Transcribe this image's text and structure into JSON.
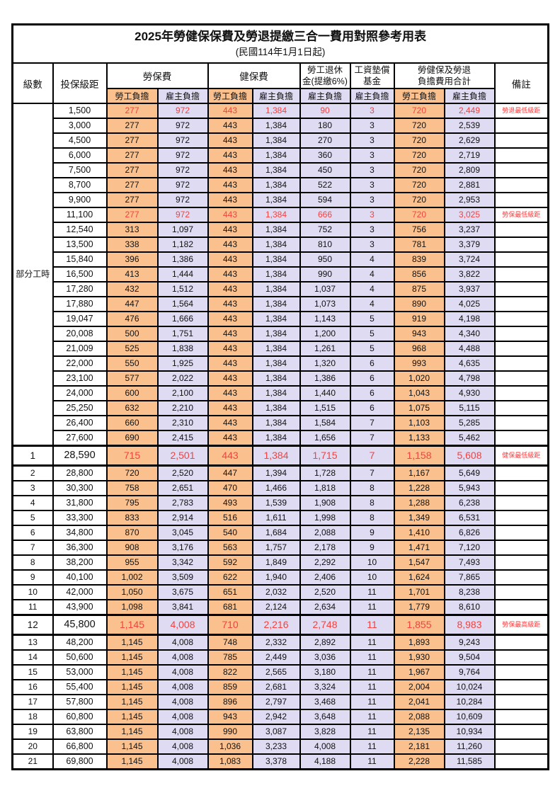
{
  "title": "2025年勞健保保費及勞退提繳三合一費用對照參考用表",
  "subtitle": "(民國114年1月1日起)",
  "colors": {
    "employee_col_bg": "#FAC18E",
    "employer_col_bg": "#DFDBF2",
    "highlight_text": "#F4423E",
    "remark_text": "#FB3B3B",
    "border": "#000000"
  },
  "header": {
    "level_label": "級數",
    "bracket_label": "投保級距",
    "groups": [
      {
        "label": "勞保費",
        "subs": [
          "勞工負擔",
          "雇主負擔"
        ]
      },
      {
        "label": "健保費",
        "subs": [
          "勞工負擔",
          "雇主負擔"
        ]
      },
      {
        "lines": [
          "勞工退休",
          "金(提繳6%)"
        ],
        "subs": [
          "雇主負擔"
        ]
      },
      {
        "lines": [
          "工資墊償",
          "基金"
        ],
        "subs": [
          "雇主負擔"
        ]
      },
      {
        "lines": [
          "勞健保及勞退",
          "負擔費用合計"
        ],
        "subs": [
          "勞工負擔",
          "雇主負擔"
        ]
      }
    ],
    "remark_label": "備註"
  },
  "part_time_label": "部分工時",
  "part_time_rowspan": 23,
  "table": {
    "rows": [
      {
        "level": null,
        "bracket": "1,500",
        "values": [
          "277",
          "972",
          "443",
          "1,384",
          "90",
          "3",
          "720",
          "2,449"
        ],
        "remark": "勞退最低級距",
        "red": true,
        "big": false
      },
      {
        "level": null,
        "bracket": "3,000",
        "values": [
          "277",
          "972",
          "443",
          "1,384",
          "180",
          "3",
          "720",
          "2,539"
        ],
        "remark": "",
        "red": false,
        "big": false
      },
      {
        "level": null,
        "bracket": "4,500",
        "values": [
          "277",
          "972",
          "443",
          "1,384",
          "270",
          "3",
          "720",
          "2,629"
        ],
        "remark": "",
        "red": false,
        "big": false
      },
      {
        "level": null,
        "bracket": "6,000",
        "values": [
          "277",
          "972",
          "443",
          "1,384",
          "360",
          "3",
          "720",
          "2,719"
        ],
        "remark": "",
        "red": false,
        "big": false
      },
      {
        "level": null,
        "bracket": "7,500",
        "values": [
          "277",
          "972",
          "443",
          "1,384",
          "450",
          "3",
          "720",
          "2,809"
        ],
        "remark": "",
        "red": false,
        "big": false
      },
      {
        "level": null,
        "bracket": "8,700",
        "values": [
          "277",
          "972",
          "443",
          "1,384",
          "522",
          "3",
          "720",
          "2,881"
        ],
        "remark": "",
        "red": false,
        "big": false
      },
      {
        "level": null,
        "bracket": "9,900",
        "values": [
          "277",
          "972",
          "443",
          "1,384",
          "594",
          "3",
          "720",
          "2,953"
        ],
        "remark": "",
        "red": false,
        "big": false
      },
      {
        "level": null,
        "bracket": "11,100",
        "values": [
          "277",
          "972",
          "443",
          "1,384",
          "666",
          "3",
          "720",
          "3,025"
        ],
        "remark": "勞保最低級距",
        "red": true,
        "big": false
      },
      {
        "level": null,
        "bracket": "12,540",
        "values": [
          "313",
          "1,097",
          "443",
          "1,384",
          "752",
          "3",
          "756",
          "3,237"
        ],
        "remark": "",
        "red": false,
        "big": false
      },
      {
        "level": null,
        "bracket": "13,500",
        "values": [
          "338",
          "1,182",
          "443",
          "1,384",
          "810",
          "3",
          "781",
          "3,379"
        ],
        "remark": "",
        "red": false,
        "big": false
      },
      {
        "level": null,
        "bracket": "15,840",
        "values": [
          "396",
          "1,386",
          "443",
          "1,384",
          "950",
          "4",
          "839",
          "3,724"
        ],
        "remark": "",
        "red": false,
        "big": false
      },
      {
        "level": null,
        "bracket": "16,500",
        "values": [
          "413",
          "1,444",
          "443",
          "1,384",
          "990",
          "4",
          "856",
          "3,822"
        ],
        "remark": "",
        "red": false,
        "big": false
      },
      {
        "level": null,
        "bracket": "17,280",
        "values": [
          "432",
          "1,512",
          "443",
          "1,384",
          "1,037",
          "4",
          "875",
          "3,937"
        ],
        "remark": "",
        "red": false,
        "big": false
      },
      {
        "level": null,
        "bracket": "17,880",
        "values": [
          "447",
          "1,564",
          "443",
          "1,384",
          "1,073",
          "4",
          "890",
          "4,025"
        ],
        "remark": "",
        "red": false,
        "big": false
      },
      {
        "level": null,
        "bracket": "19,047",
        "values": [
          "476",
          "1,666",
          "443",
          "1,384",
          "1,143",
          "5",
          "919",
          "4,198"
        ],
        "remark": "",
        "red": false,
        "big": false
      },
      {
        "level": null,
        "bracket": "20,008",
        "values": [
          "500",
          "1,751",
          "443",
          "1,384",
          "1,200",
          "5",
          "943",
          "4,340"
        ],
        "remark": "",
        "red": false,
        "big": false
      },
      {
        "level": null,
        "bracket": "21,009",
        "values": [
          "525",
          "1,838",
          "443",
          "1,384",
          "1,261",
          "5",
          "968",
          "4,488"
        ],
        "remark": "",
        "red": false,
        "big": false
      },
      {
        "level": null,
        "bracket": "22,000",
        "values": [
          "550",
          "1,925",
          "443",
          "1,384",
          "1,320",
          "6",
          "993",
          "4,635"
        ],
        "remark": "",
        "red": false,
        "big": false
      },
      {
        "level": null,
        "bracket": "23,100",
        "values": [
          "577",
          "2,022",
          "443",
          "1,384",
          "1,386",
          "6",
          "1,020",
          "4,798"
        ],
        "remark": "",
        "red": false,
        "big": false
      },
      {
        "level": null,
        "bracket": "24,000",
        "values": [
          "600",
          "2,100",
          "443",
          "1,384",
          "1,440",
          "6",
          "1,043",
          "4,930"
        ],
        "remark": "",
        "red": false,
        "big": false
      },
      {
        "level": null,
        "bracket": "25,250",
        "values": [
          "632",
          "2,210",
          "443",
          "1,384",
          "1,515",
          "6",
          "1,075",
          "5,115"
        ],
        "remark": "",
        "red": false,
        "big": false
      },
      {
        "level": null,
        "bracket": "26,400",
        "values": [
          "660",
          "2,310",
          "443",
          "1,384",
          "1,584",
          "7",
          "1,103",
          "5,285"
        ],
        "remark": "",
        "red": false,
        "big": false
      },
      {
        "level": null,
        "bracket": "27,600",
        "values": [
          "690",
          "2,415",
          "443",
          "1,384",
          "1,656",
          "7",
          "1,133",
          "5,462"
        ],
        "remark": "",
        "red": false,
        "big": false
      },
      {
        "level": "1",
        "bracket": "28,590",
        "values": [
          "715",
          "2,501",
          "443",
          "1,384",
          "1,715",
          "7",
          "1,158",
          "5,608"
        ],
        "remark": "健保最低級距",
        "red": true,
        "big": true
      },
      {
        "level": "2",
        "bracket": "28,800",
        "values": [
          "720",
          "2,520",
          "447",
          "1,394",
          "1,728",
          "7",
          "1,167",
          "5,649"
        ],
        "remark": "",
        "red": false,
        "big": false
      },
      {
        "level": "3",
        "bracket": "30,300",
        "values": [
          "758",
          "2,651",
          "470",
          "1,466",
          "1,818",
          "8",
          "1,228",
          "5,943"
        ],
        "remark": "",
        "red": false,
        "big": false
      },
      {
        "level": "4",
        "bracket": "31,800",
        "values": [
          "795",
          "2,783",
          "493",
          "1,539",
          "1,908",
          "8",
          "1,288",
          "6,238"
        ],
        "remark": "",
        "red": false,
        "big": false
      },
      {
        "level": "5",
        "bracket": "33,300",
        "values": [
          "833",
          "2,914",
          "516",
          "1,611",
          "1,998",
          "8",
          "1,349",
          "6,531"
        ],
        "remark": "",
        "red": false,
        "big": false
      },
      {
        "level": "6",
        "bracket": "34,800",
        "values": [
          "870",
          "3,045",
          "540",
          "1,684",
          "2,088",
          "9",
          "1,410",
          "6,826"
        ],
        "remark": "",
        "red": false,
        "big": false
      },
      {
        "level": "7",
        "bracket": "36,300",
        "values": [
          "908",
          "3,176",
          "563",
          "1,757",
          "2,178",
          "9",
          "1,471",
          "7,120"
        ],
        "remark": "",
        "red": false,
        "big": false
      },
      {
        "level": "8",
        "bracket": "38,200",
        "values": [
          "955",
          "3,342",
          "592",
          "1,849",
          "2,292",
          "10",
          "1,547",
          "7,493"
        ],
        "remark": "",
        "red": false,
        "big": false
      },
      {
        "level": "9",
        "bracket": "40,100",
        "values": [
          "1,002",
          "3,509",
          "622",
          "1,940",
          "2,406",
          "10",
          "1,624",
          "7,865"
        ],
        "remark": "",
        "red": false,
        "big": false
      },
      {
        "level": "10",
        "bracket": "42,000",
        "values": [
          "1,050",
          "3,675",
          "651",
          "2,032",
          "2,520",
          "11",
          "1,701",
          "8,238"
        ],
        "remark": "",
        "red": false,
        "big": false
      },
      {
        "level": "11",
        "bracket": "43,900",
        "values": [
          "1,098",
          "3,841",
          "681",
          "2,124",
          "2,634",
          "11",
          "1,779",
          "8,610"
        ],
        "remark": "",
        "red": false,
        "big": false
      },
      {
        "level": "12",
        "bracket": "45,800",
        "values": [
          "1,145",
          "4,008",
          "710",
          "2,216",
          "2,748",
          "11",
          "1,855",
          "8,983"
        ],
        "remark": "勞保最高級距",
        "red": true,
        "big": true
      },
      {
        "level": "13",
        "bracket": "48,200",
        "values": [
          "1,145",
          "4,008",
          "748",
          "2,332",
          "2,892",
          "11",
          "1,893",
          "9,243"
        ],
        "remark": "",
        "red": false,
        "big": false
      },
      {
        "level": "14",
        "bracket": "50,600",
        "values": [
          "1,145",
          "4,008",
          "785",
          "2,449",
          "3,036",
          "11",
          "1,930",
          "9,504"
        ],
        "remark": "",
        "red": false,
        "big": false
      },
      {
        "level": "15",
        "bracket": "53,000",
        "values": [
          "1,145",
          "4,008",
          "822",
          "2,565",
          "3,180",
          "11",
          "1,967",
          "9,764"
        ],
        "remark": "",
        "red": false,
        "big": false
      },
      {
        "level": "16",
        "bracket": "55,400",
        "values": [
          "1,145",
          "4,008",
          "859",
          "2,681",
          "3,324",
          "11",
          "2,004",
          "10,024"
        ],
        "remark": "",
        "red": false,
        "big": false
      },
      {
        "level": "17",
        "bracket": "57,800",
        "values": [
          "1,145",
          "4,008",
          "896",
          "2,797",
          "3,468",
          "11",
          "2,041",
          "10,284"
        ],
        "remark": "",
        "red": false,
        "big": false
      },
      {
        "level": "18",
        "bracket": "60,800",
        "values": [
          "1,145",
          "4,008",
          "943",
          "2,942",
          "3,648",
          "11",
          "2,088",
          "10,609"
        ],
        "remark": "",
        "red": false,
        "big": false
      },
      {
        "level": "19",
        "bracket": "63,800",
        "values": [
          "1,145",
          "4,008",
          "990",
          "3,087",
          "3,828",
          "11",
          "2,135",
          "10,934"
        ],
        "remark": "",
        "red": false,
        "big": false
      },
      {
        "level": "20",
        "bracket": "66,800",
        "values": [
          "1,145",
          "4,008",
          "1,036",
          "3,233",
          "4,008",
          "11",
          "2,181",
          "11,260"
        ],
        "remark": "",
        "red": false,
        "big": false
      },
      {
        "level": "21",
        "bracket": "69,800",
        "values": [
          "1,145",
          "4,008",
          "1,083",
          "3,378",
          "4,188",
          "11",
          "2,228",
          "11,585"
        ],
        "remark": "",
        "red": false,
        "big": false
      }
    ]
  }
}
